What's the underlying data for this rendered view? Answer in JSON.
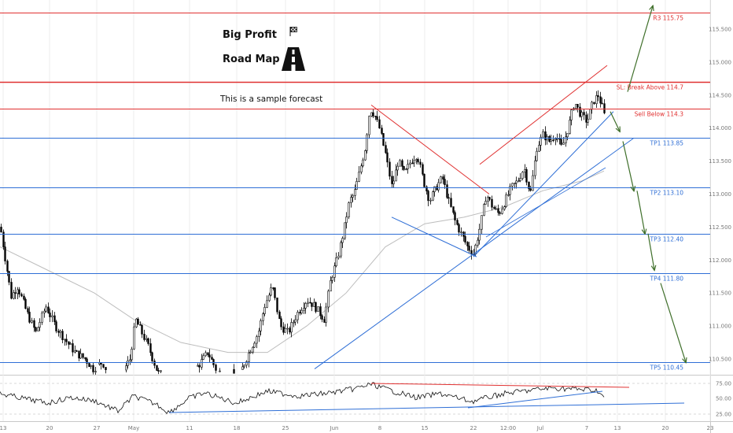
{
  "headline": {
    "title": "Big Profit",
    "subtitle": "Road Map",
    "note": "This is a sample forecast",
    "flag_icon": "checkered-flag-icon",
    "road_icon": "road-icon"
  },
  "colors": {
    "red": "#e03131",
    "blue": "#2f6fd6",
    "green": "#3f6f2a",
    "up_candle": "#000000",
    "down_candle": "#000000",
    "ma": "#bdbdbd",
    "rsi": "#111111"
  },
  "levels": [
    {
      "label": "R3 115.75",
      "price": 115.75,
      "color": "red"
    },
    {
      "label": "SL: Break Above 114.7",
      "price": 114.7,
      "color": "red"
    },
    {
      "label": "Sell Below 114.3",
      "price": 114.3,
      "color": "red"
    },
    {
      "label": "TP1 113.85",
      "price": 113.85,
      "color": "blue"
    },
    {
      "label": "TP2 113.10",
      "price": 113.1,
      "color": "blue"
    },
    {
      "label": "TP3 112.40",
      "price": 112.4,
      "color": "blue"
    },
    {
      "label": "TP4 111.80",
      "price": 111.8,
      "color": "blue"
    },
    {
      "label": "TP5 110.45",
      "price": 110.45,
      "color": "blue"
    }
  ],
  "price_axis": [
    "115.500",
    "115.000",
    "114.500",
    "114.000",
    "113.500",
    "113.000",
    "112.500",
    "112.000",
    "111.500",
    "111.000",
    "110.500"
  ],
  "rsi_axis": [
    "75.00",
    "50.00",
    "25.00"
  ],
  "time_axis": [
    "13",
    "20",
    "27",
    "May",
    "11",
    "18",
    "25",
    "Jun",
    "8",
    "15",
    "22",
    "12:00",
    "Jul",
    "7",
    "13",
    "20",
    "23"
  ],
  "chart_data": {
    "type": "line",
    "x": [
      "13",
      "20",
      "27",
      "May",
      "11",
      "18",
      "25",
      "Jun",
      "8",
      "15",
      "22",
      "Jul",
      "7",
      "13"
    ],
    "series": [
      {
        "values": [
          112.5,
          111.5,
          110.9,
          110.6,
          110.3,
          110.2,
          110.9,
          111.6,
          114.3,
          112.9,
          112.1,
          113.1,
          114.2,
          114.2
        ]
      }
    ],
    "ylim": [
      110.3,
      115.9
    ]
  }
}
